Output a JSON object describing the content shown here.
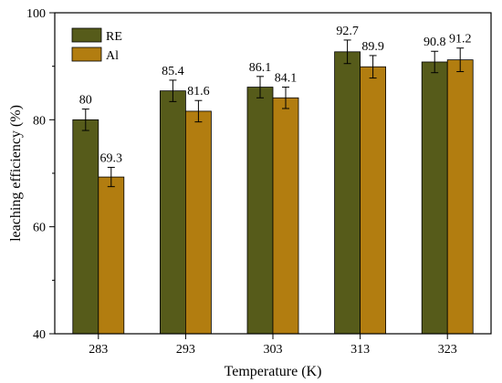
{
  "chart_data": {
    "type": "bar",
    "title": "",
    "xlabel": "Temperature (K)",
    "ylabel": "leaching efficiency (%)",
    "categories": [
      "283",
      "293",
      "303",
      "313",
      "323"
    ],
    "ylim": [
      40,
      100
    ],
    "yticks": [
      40,
      60,
      80,
      100
    ],
    "grid": false,
    "legend_position": "top-left",
    "series": [
      {
        "name": "RE",
        "values": [
          80,
          85.4,
          86.1,
          92.7,
          90.8
        ],
        "labels": [
          "80",
          "85.4",
          "86.1",
          "92.7",
          "90.8"
        ],
        "errors": [
          2.0,
          2.0,
          2.0,
          2.2,
          2.0
        ],
        "color": "#565b1a"
      },
      {
        "name": "Al",
        "values": [
          69.3,
          81.6,
          84.1,
          89.9,
          91.2
        ],
        "labels": [
          "69.3",
          "81.6",
          "84.1",
          "89.9",
          "91.2"
        ],
        "errors": [
          1.8,
          2.0,
          2.0,
          2.1,
          2.2
        ],
        "color": "#b27d10"
      }
    ]
  }
}
